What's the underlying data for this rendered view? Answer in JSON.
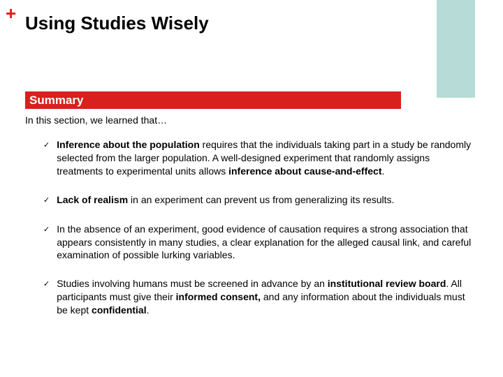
{
  "colors": {
    "accent_red": "#d8201e",
    "accent_teal": "#b7dcd7",
    "plus_color": "#d8201e",
    "title_color": "#000000",
    "summary_bg": "#d8201e",
    "summary_text": "#ffffff",
    "body_text": "#000000",
    "background": "#ffffff"
  },
  "plus_glyph": "+",
  "title": "Using Studies Wisely",
  "summary_label": "Summary",
  "intro": "In this section, we learned that…",
  "check_glyph": "✓",
  "bullets": [
    {
      "runs": [
        {
          "text": "Inference about the population",
          "bold": true
        },
        {
          "text": " requires that the individuals taking part in a study be randomly selected from the larger population. A well-designed experiment that randomly assigns treatments to experimental units allows ",
          "bold": false
        },
        {
          "text": "inference about cause-and-effect",
          "bold": true
        },
        {
          "text": ".",
          "bold": false
        }
      ]
    },
    {
      "runs": [
        {
          "text": "Lack of realism",
          "bold": true
        },
        {
          "text": " in an experiment can prevent us from generalizing its results.",
          "bold": false
        }
      ]
    },
    {
      "runs": [
        {
          "text": "In the absence of an experiment, good evidence of causation requires a strong association that appears consistently in many studies, a clear explanation for the alleged causal link, and careful examination of possible lurking variables.",
          "bold": false
        }
      ]
    },
    {
      "runs": [
        {
          "text": "Studies involving humans must be screened in advance by an ",
          "bold": false
        },
        {
          "text": "institutional review board",
          "bold": true
        },
        {
          "text": ". All participants must give their ",
          "bold": false
        },
        {
          "text": "informed consent,",
          "bold": true
        },
        {
          "text": " and any information about the individuals must be kept ",
          "bold": false
        },
        {
          "text": "confidential",
          "bold": true
        },
        {
          "text": ".",
          "bold": false
        }
      ]
    }
  ],
  "typography": {
    "title_fontsize": 26,
    "summary_fontsize": 17,
    "intro_fontsize": 14,
    "body_fontsize": 14,
    "check_fontsize": 11
  }
}
